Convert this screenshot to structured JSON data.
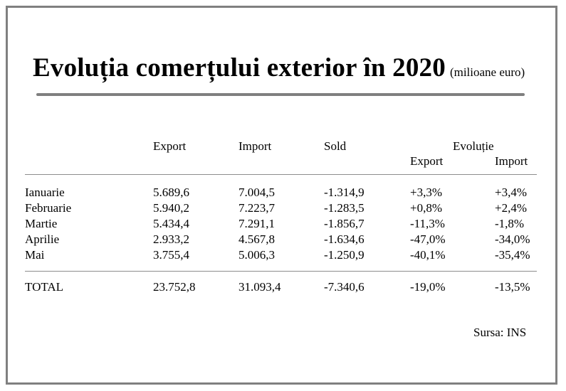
{
  "title": "Evoluția comerțului exterior în 2020",
  "subtitle": "(milioane euro)",
  "headers": {
    "export": "Export",
    "import": "Import",
    "sold": "Sold",
    "evolutie": "Evoluție",
    "evol_export": "Export",
    "evol_import": "Import"
  },
  "rows": [
    {
      "month": "Ianuarie",
      "export": "5.689,6",
      "import": "7.004,5",
      "sold": "-1.314,9",
      "evol_export": "+3,3%",
      "evol_import": "+3,4%"
    },
    {
      "month": "Februarie",
      "export": "5.940,2",
      "import": "7.223,7",
      "sold": "-1.283,5",
      "evol_export": "+0,8%",
      "evol_import": "+2,4%"
    },
    {
      "month": "Martie",
      "export": "5.434,4",
      "import": "7.291,1",
      "sold": "-1.856,7",
      "evol_export": "-11,3%",
      "evol_import": "-1,8%"
    },
    {
      "month": "Aprilie",
      "export": "2.933,2",
      "import": "4.567,8",
      "sold": "-1.634,6",
      "evol_export": "-47,0%",
      "evol_import": "-34,0%"
    },
    {
      "month": "Mai",
      "export": "3.755,4",
      "import": "5.006,3",
      "sold": "-1.250,9",
      "evol_export": "-40,1%",
      "evol_import": "-35,4%"
    }
  ],
  "total": {
    "label": "TOTAL",
    "export": "23.752,8",
    "import": "31.093,4",
    "sold": "-7.340,6",
    "evol_export": "-19,0%",
    "evol_import": "-13,5%"
  },
  "source": "Sursa: INS",
  "colors": {
    "frame": "#808080",
    "title_rule": "#7f7f7f",
    "rule": "#8c8c8c"
  }
}
